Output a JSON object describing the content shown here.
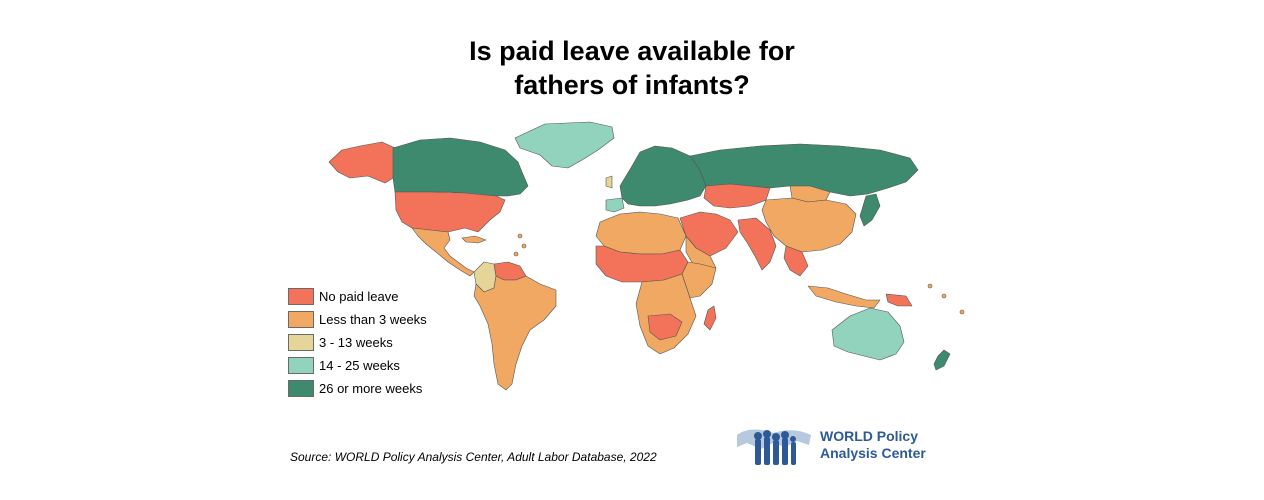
{
  "title_line1": "Is paid leave available for",
  "title_line2": "fathers of infants?",
  "legend": [
    {
      "label": "No paid leave",
      "color": "#f2735a"
    },
    {
      "label": "Less than 3 weeks",
      "color": "#f0a862"
    },
    {
      "label": "3 - 13 weeks",
      "color": "#e6d598"
    },
    {
      "label": "14 - 25 weeks",
      "color": "#91d3bd"
    },
    {
      "label": "26 or more weeks",
      "color": "#3e8a6e"
    }
  ],
  "source": "Source: WORLD Policy Analysis Center, Adult Labor Database, 2022",
  "logo_line1": "WORLD Policy",
  "logo_line2": "Analysis Center",
  "colors": {
    "no_paid": "#f2735a",
    "less_3": "#f0a862",
    "w3_13": "#e6d598",
    "w14_25": "#91d3bd",
    "w26_plus": "#3e8a6e",
    "logo_blue": "#2d5a96"
  }
}
